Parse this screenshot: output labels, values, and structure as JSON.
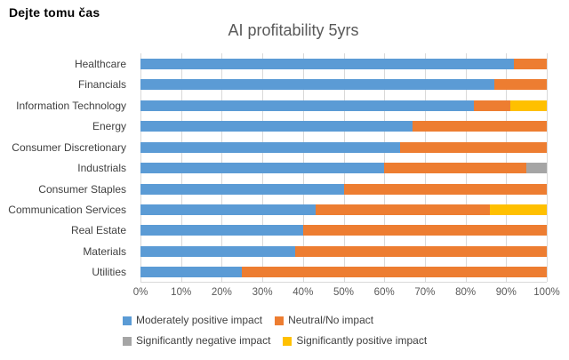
{
  "header": {
    "title": "Dejte tomu čas"
  },
  "chart_data": {
    "type": "bar",
    "orientation": "horizontal",
    "stacked": true,
    "title": "AI profitability 5yrs",
    "categories": [
      "Healthcare",
      "Financials",
      "Information Technology",
      "Energy",
      "Consumer Discretionary",
      "Industrials",
      "Consumer Staples",
      "Communication Services",
      "Real Estate",
      "Materials",
      "Utilities"
    ],
    "series": [
      {
        "name": "Moderately positive impact",
        "color": "#5B9BD5",
        "values": [
          92,
          87,
          82,
          67,
          64,
          60,
          50,
          43,
          40,
          38,
          25
        ]
      },
      {
        "name": "Neutral/No impact",
        "color": "#ED7D31",
        "values": [
          8,
          13,
          9,
          33,
          36,
          35,
          50,
          43,
          60,
          62,
          75
        ]
      },
      {
        "name": "Significantly negative impact",
        "color": "#A5A5A5",
        "values": [
          0,
          0,
          0,
          0,
          0,
          5,
          0,
          0,
          0,
          0,
          0
        ]
      },
      {
        "name": "Significantly positive impact",
        "color": "#FFC000",
        "values": [
          0,
          0,
          9,
          0,
          0,
          0,
          0,
          14,
          0,
          0,
          0
        ]
      }
    ],
    "x_ticks": [
      "0%",
      "10%",
      "20%",
      "30%",
      "40%",
      "50%",
      "60%",
      "70%",
      "80%",
      "90%",
      "100%"
    ],
    "xlim": [
      0,
      100
    ],
    "unit": "percent",
    "grid": true,
    "legend_position": "bottom"
  }
}
